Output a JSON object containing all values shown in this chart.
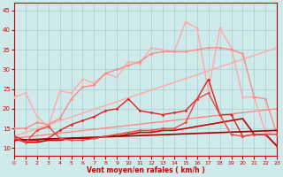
{
  "xlabel": "Vent moyen/en rafales ( km/h )",
  "xlim": [
    0,
    23
  ],
  "ylim": [
    8,
    47
  ],
  "yticks": [
    10,
    15,
    20,
    25,
    30,
    35,
    40,
    45
  ],
  "xticks": [
    0,
    1,
    2,
    3,
    4,
    5,
    6,
    7,
    8,
    9,
    10,
    11,
    12,
    13,
    14,
    15,
    16,
    17,
    18,
    19,
    20,
    21,
    22,
    23
  ],
  "bg_color": "#ceeaea",
  "grid_color": "#aacccc",
  "series": [
    {
      "x": [
        0,
        23
      ],
      "y": [
        13.0,
        35.5
      ],
      "color": "#ffaaaa",
      "lw": 1.0,
      "marker": null
    },
    {
      "x": [
        0,
        23
      ],
      "y": [
        12.5,
        20.0
      ],
      "color": "#ff8888",
      "lw": 1.0,
      "marker": null
    },
    {
      "x": [
        0,
        1,
        2,
        3,
        4,
        5,
        6,
        7,
        8,
        9,
        10,
        11,
        12,
        13,
        14,
        15,
        16,
        17,
        18,
        19,
        20,
        21,
        22,
        23
      ],
      "y": [
        23.0,
        24.0,
        18.0,
        15.5,
        24.5,
        24.0,
        27.5,
        26.5,
        29.0,
        28.0,
        32.0,
        31.5,
        35.5,
        35.0,
        34.5,
        42.0,
        40.5,
        24.5,
        40.5,
        35.5,
        23.0,
        23.0,
        14.0,
        13.5
      ],
      "color": "#ffaaaa",
      "lw": 1.0,
      "marker": "D",
      "ms": 1.5
    },
    {
      "x": [
        0,
        1,
        2,
        3,
        4,
        5,
        6,
        7,
        8,
        9,
        10,
        11,
        12,
        13,
        14,
        15,
        16,
        17,
        18,
        19,
        20,
        21,
        22,
        23
      ],
      "y": [
        15.0,
        15.0,
        16.5,
        16.0,
        17.5,
        22.5,
        25.5,
        26.0,
        29.0,
        30.0,
        31.0,
        32.0,
        34.0,
        34.5,
        34.5,
        34.5,
        35.0,
        35.5,
        35.5,
        35.0,
        34.0,
        23.0,
        22.5,
        13.5
      ],
      "color": "#ff8888",
      "lw": 1.0,
      "marker": "D",
      "ms": 1.5
    },
    {
      "x": [
        0,
        1,
        2,
        3,
        4,
        5,
        6,
        7,
        8,
        9,
        10,
        11,
        12,
        13,
        14,
        15,
        16,
        17,
        18,
        19,
        20,
        21,
        22,
        23
      ],
      "y": [
        13.0,
        12.0,
        12.0,
        12.5,
        14.5,
        16.0,
        17.0,
        18.0,
        19.5,
        20.0,
        22.5,
        19.5,
        19.0,
        18.5,
        19.0,
        19.5,
        22.5,
        27.5,
        18.5,
        18.5,
        13.0,
        13.5,
        13.5,
        10.5
      ],
      "color": "#dd2222",
      "lw": 1.0,
      "marker": "D",
      "ms": 1.5
    },
    {
      "x": [
        0,
        1,
        2,
        3,
        4,
        5,
        6,
        7,
        8,
        9,
        10,
        11,
        12,
        13,
        14,
        15,
        16,
        17,
        18,
        19,
        20,
        21,
        22,
        23
      ],
      "y": [
        12.5,
        11.5,
        11.5,
        12.0,
        12.0,
        12.5,
        12.5,
        12.5,
        13.0,
        13.0,
        13.5,
        14.0,
        14.0,
        14.5,
        14.5,
        15.0,
        15.5,
        16.0,
        16.5,
        17.0,
        17.5,
        13.5,
        13.5,
        10.5
      ],
      "color": "#cc0000",
      "lw": 1.2,
      "marker": null
    },
    {
      "x": [
        0,
        23
      ],
      "y": [
        12.0,
        14.5
      ],
      "color": "#990000",
      "lw": 1.2,
      "marker": null
    },
    {
      "x": [
        0,
        1,
        2,
        3,
        4,
        5,
        6,
        7,
        8,
        9,
        10,
        11,
        12,
        13,
        14,
        15,
        16,
        17,
        18,
        19,
        20,
        21,
        22,
        23
      ],
      "y": [
        12.5,
        11.5,
        14.5,
        15.5,
        12.5,
        12.0,
        12.0,
        12.5,
        13.0,
        13.5,
        14.0,
        14.5,
        14.5,
        15.0,
        15.0,
        16.5,
        22.5,
        24.0,
        18.5,
        13.5,
        13.0,
        13.5,
        13.5,
        13.5
      ],
      "color": "#ee4444",
      "lw": 1.0,
      "marker": "D",
      "ms": 1.5
    }
  ]
}
